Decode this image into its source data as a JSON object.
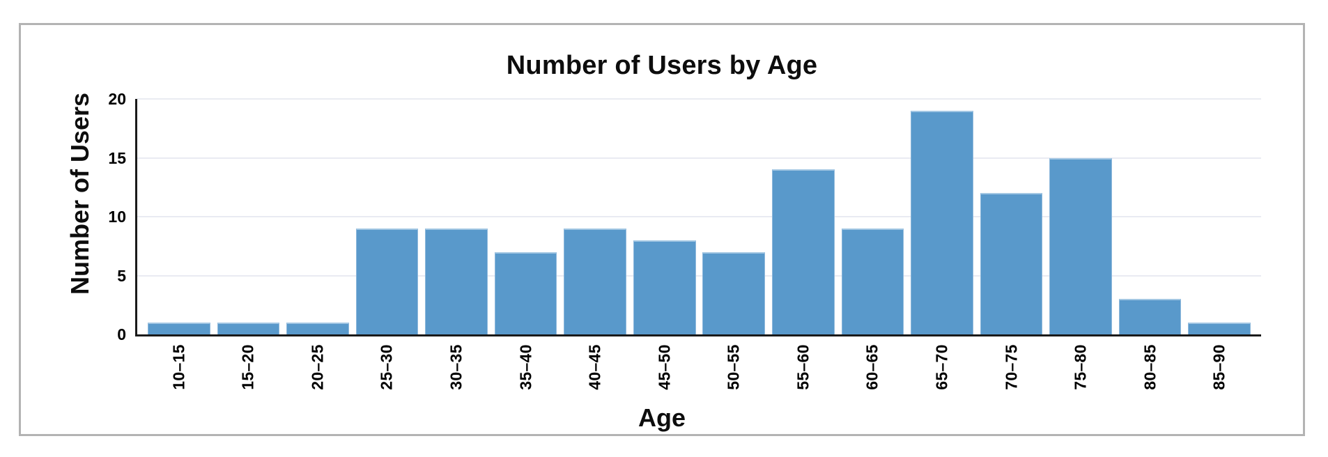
{
  "chart_data": {
    "type": "bar",
    "title": "Number of Users by Age",
    "xlabel": "Age",
    "ylabel": "Number of Users",
    "categories": [
      "10–15",
      "15–20",
      "20–25",
      "25–30",
      "30–35",
      "35–40",
      "40–45",
      "45–50",
      "50–55",
      "55–60",
      "60–65",
      "65–70",
      "70–75",
      "75–80",
      "80–85",
      "85–90"
    ],
    "values": [
      1,
      1,
      1,
      9,
      9,
      7,
      9,
      8,
      7,
      14,
      9,
      19,
      12,
      15,
      3,
      1
    ],
    "ylim": [
      0,
      20
    ],
    "yticks": [
      0,
      5,
      10,
      15,
      20
    ],
    "grid": "horizontal",
    "legend": "none",
    "colors": {
      "bar_fill": "#5999cb",
      "bar_edge": "#a3c7e3",
      "axis_spine": "#1a1a1a",
      "gridline": "#e9ebf2",
      "panel_border": "#b3b3b3",
      "text": "#0d0d0d"
    }
  }
}
